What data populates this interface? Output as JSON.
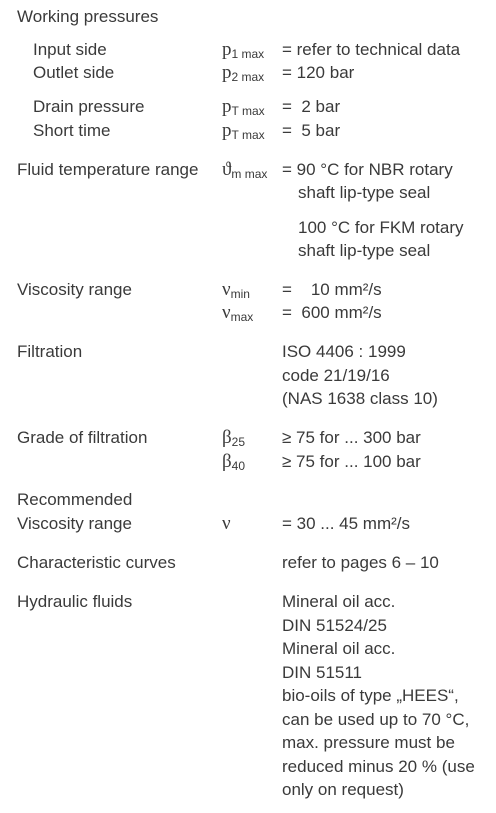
{
  "items": [
    {
      "labels": [
        "Working pressures"
      ]
    },
    {
      "labels": [
        "Input side"
      ],
      "symbols": [
        {
          "base": "p",
          "sub": "1 max"
        }
      ],
      "values": [
        "= refer to technical data"
      ]
    },
    {
      "labels": [
        "Outlet side"
      ],
      "symbols": [
        {
          "base": "p",
          "sub": "2 max"
        }
      ],
      "values": [
        "= 120 bar"
      ]
    },
    {
      "labels": [
        "Drain pressure"
      ],
      "symbols": [
        {
          "base": "p",
          "sub": "T max"
        }
      ],
      "values": [
        "=  2 bar"
      ]
    },
    {
      "labels": [
        "Short time"
      ],
      "symbols": [
        {
          "base": "p",
          "sub": "T max"
        }
      ],
      "values": [
        "=  5 bar"
      ]
    },
    {
      "labels": [
        "Fluid temperature range"
      ],
      "symbols": [
        {
          "base": "ϑ",
          "sub": "m max"
        }
      ],
      "values": [
        "= 90 °C for NBR rotary",
        "shaft lip-type seal",
        "100 °C for FKM rotary",
        "shaft lip-type seal"
      ]
    },
    {
      "labels": [
        "Viscosity range"
      ],
      "symbols": [
        {
          "base": "ν",
          "sub": "min"
        },
        {
          "base": "ν",
          "sub": "max"
        }
      ],
      "values": [
        "=    10 mm²/s",
        "=  600 mm²/s"
      ]
    },
    {
      "labels": [
        "Filtration"
      ],
      "values": [
        "ISO 4406 : 1999",
        "code 21/19/16",
        "(NAS 1638 class 10)"
      ]
    },
    {
      "labels": [
        "Grade of filtration"
      ],
      "symbols": [
        {
          "base": "β",
          "sub": "25"
        },
        {
          "base": "β",
          "sub": "40"
        }
      ],
      "values": [
        "≥ 75 for ... 300 bar",
        "≥ 75 for ... 100 bar"
      ]
    },
    {
      "labels": [
        "Recommended",
        "Viscosity range"
      ],
      "symbols": [
        {
          "base": "ν"
        }
      ],
      "values": [
        "= 30 ... 45 mm²/s"
      ]
    },
    {
      "labels": [
        "Characteristic curves"
      ],
      "values": [
        "refer to pages 6 – 10"
      ]
    },
    {
      "labels": [
        "Hydraulic fluids"
      ],
      "values": [
        "Mineral oil acc.",
        "DIN 51524/25",
        "Mineral oil acc.",
        "DIN 51511",
        "bio-oils of type „HEES“,",
        "can be used up to 70 °C,",
        "max. pressure must be",
        "reduced minus 20 % (use",
        "only on request)"
      ]
    }
  ]
}
